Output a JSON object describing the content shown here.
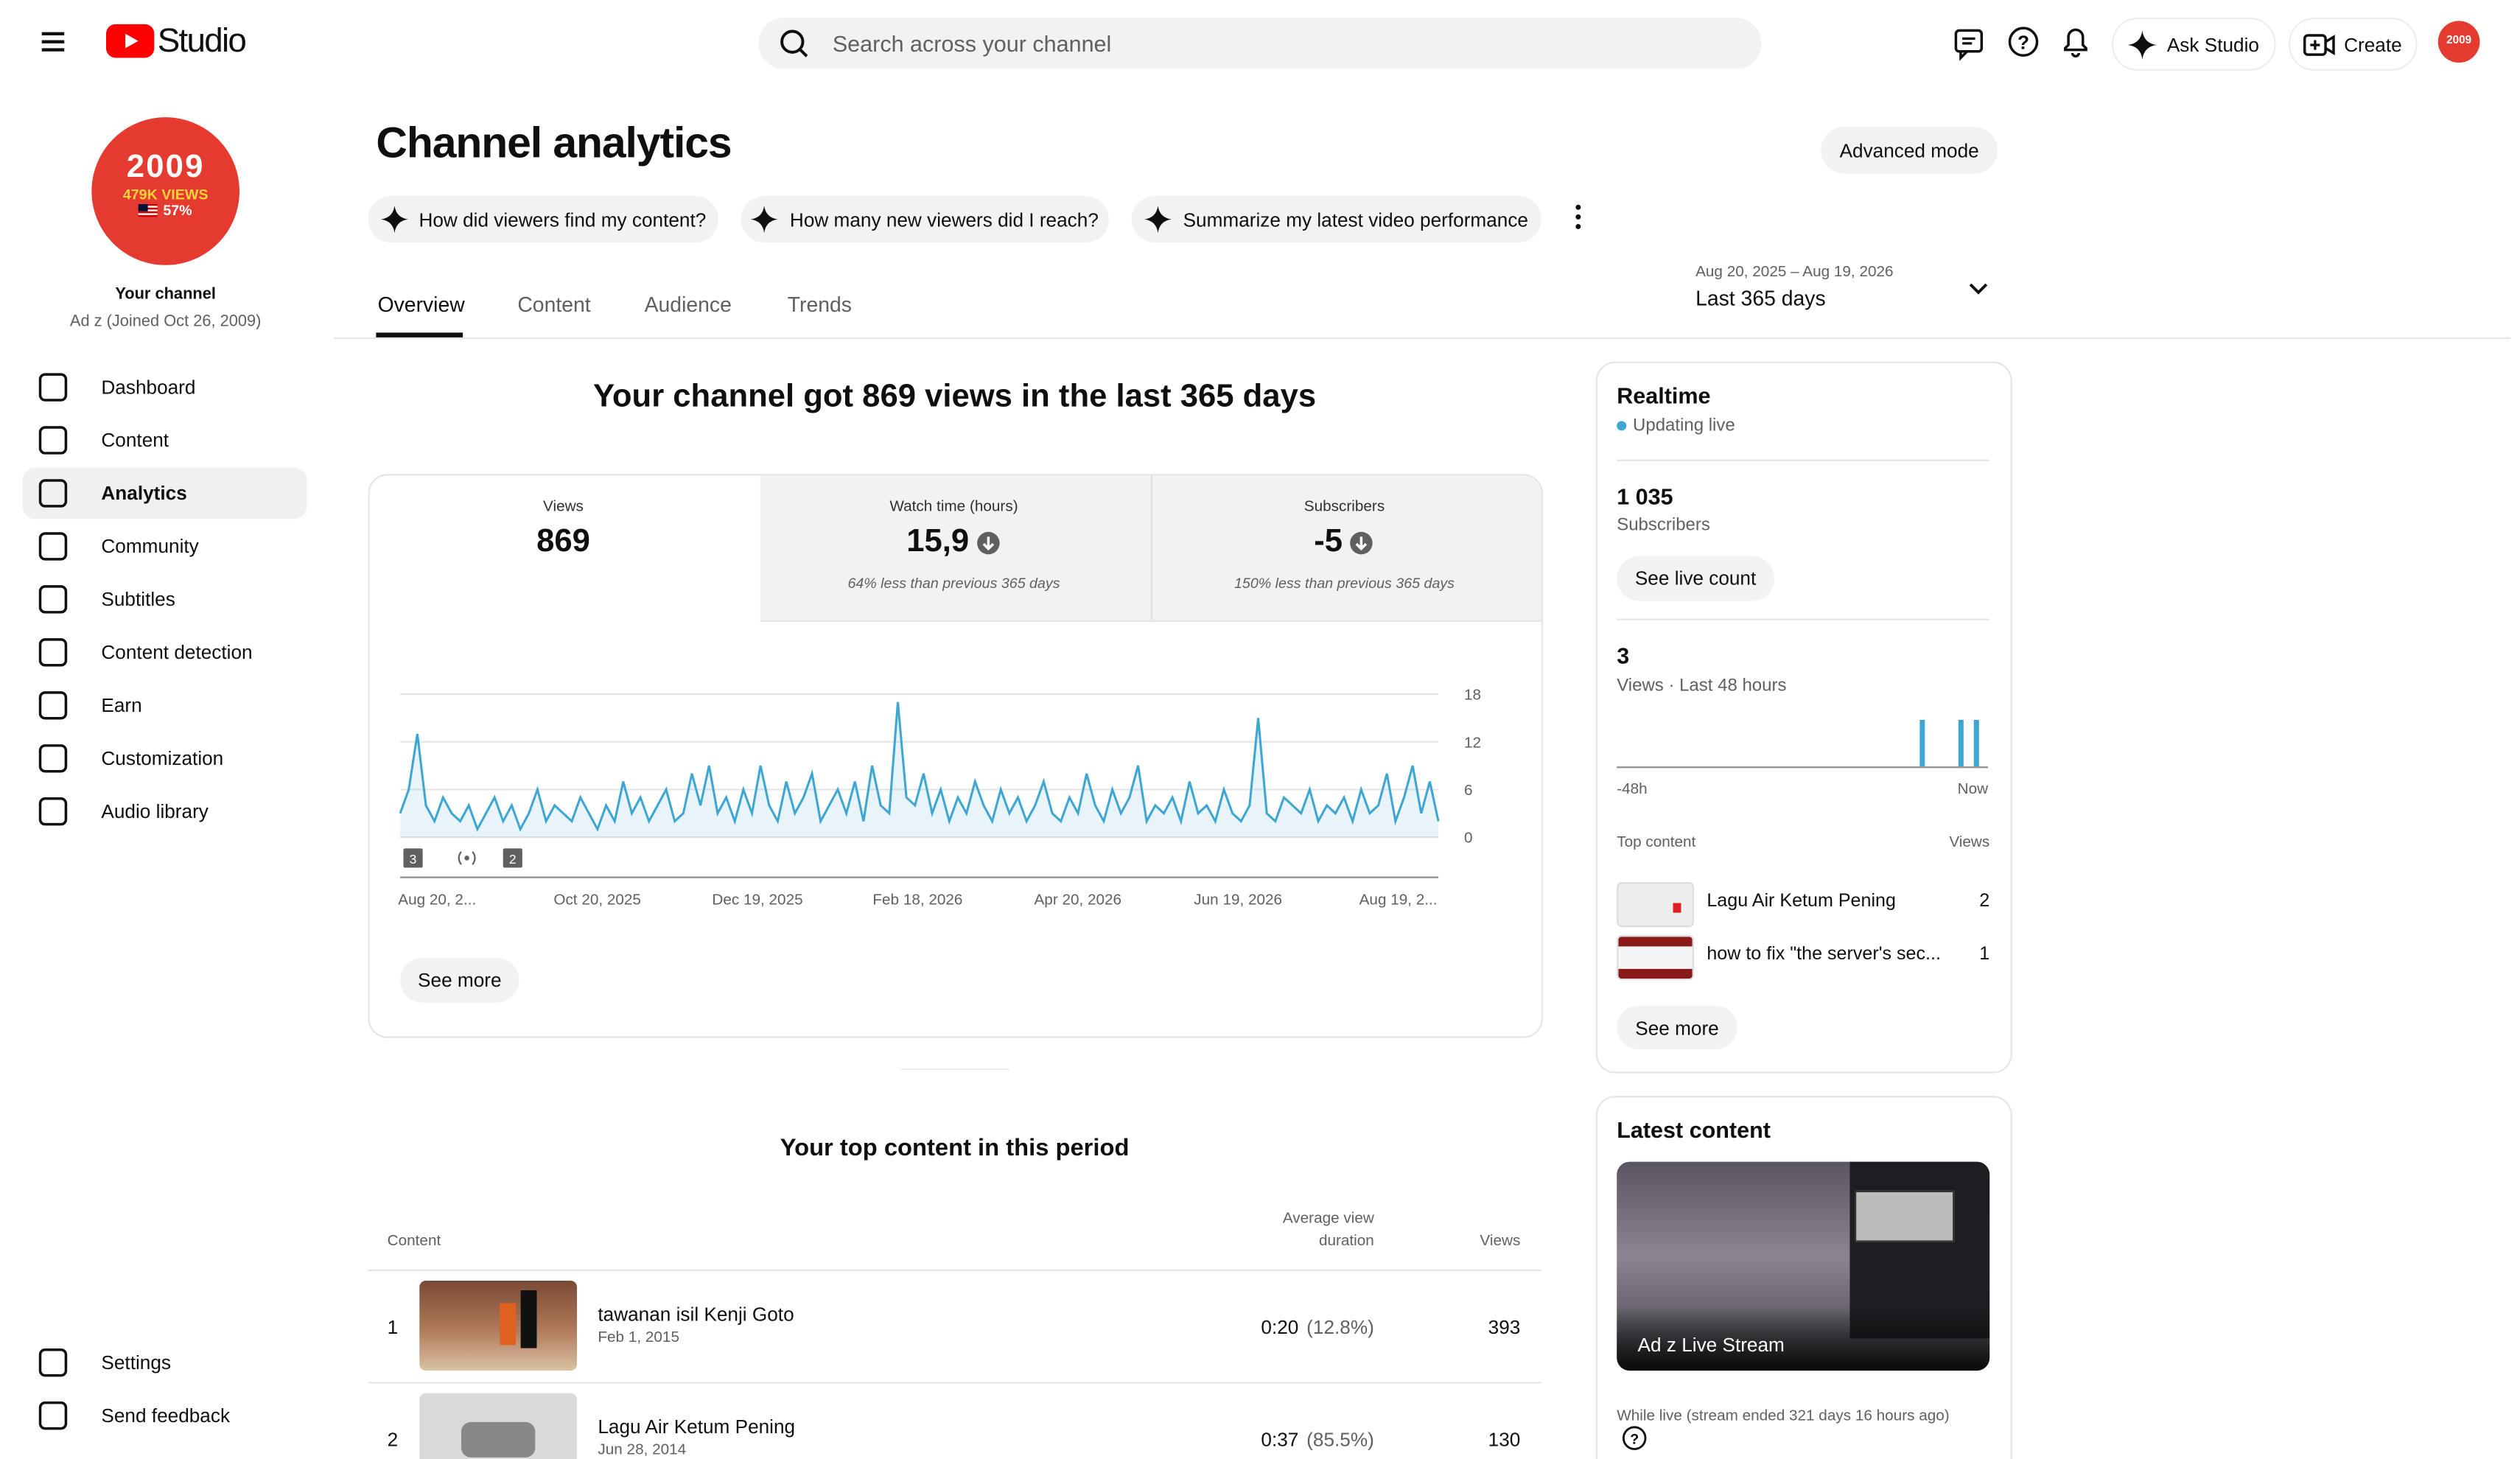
{
  "header": {
    "logo": "Studio",
    "search_placeholder": "Search across your channel",
    "ask_studio": "Ask Studio",
    "create": "Create",
    "avatar_text": "2009"
  },
  "sidebar": {
    "avatar": {
      "year": "2009",
      "views": "479K VIEWS",
      "share": "57%"
    },
    "channel_name": "Your channel",
    "channel_meta": "Ad z (Joined Oct 26, 2009)",
    "nav": [
      "Dashboard",
      "Content",
      "Analytics",
      "Community",
      "Subtitles",
      "Content detection",
      "Earn",
      "Customization",
      "Audio library"
    ],
    "footer_nav": [
      "Settings",
      "Send feedback"
    ]
  },
  "page": {
    "title": "Channel analytics",
    "advanced_mode": "Advanced mode",
    "prompts": [
      "How did viewers find my content?",
      "How many new viewers did I reach?",
      "Summarize my latest video performance"
    ],
    "tabs": [
      "Overview",
      "Content",
      "Audience",
      "Trends"
    ],
    "date_range": "Aug 20, 2025 – Aug 19, 2026",
    "period": "Last 365 days"
  },
  "overview": {
    "headline": "Your channel got 869 views in the last 365 days",
    "metrics": [
      {
        "label": "Views",
        "value": "869"
      },
      {
        "label": "Watch time (hours)",
        "value": "15,9",
        "note": "64% less than previous 365 days"
      },
      {
        "label": "Subscribers",
        "value": "-5",
        "note": "150% less than previous 365 days"
      }
    ],
    "see_more": "See more"
  },
  "views_chart": {
    "type": "line",
    "color": "#3ea6d3",
    "x_labels": [
      "Aug 20, 2...",
      "Oct 20, 2025",
      "Dec 19, 2025",
      "Feb 18, 2026",
      "Apr 20, 2026",
      "Jun 19, 2026",
      "Aug 19, 2..."
    ],
    "values": [
      3,
      6,
      13,
      4,
      2,
      5,
      3,
      2,
      4,
      1,
      3,
      5,
      2,
      4,
      1,
      3,
      6,
      2,
      4,
      3,
      2,
      5,
      3,
      1,
      4,
      2,
      7,
      3,
      5,
      2,
      4,
      6,
      2,
      3,
      8,
      4,
      9,
      3,
      5,
      2,
      6,
      3,
      9,
      4,
      2,
      7,
      3,
      5,
      8,
      2,
      4,
      6,
      3,
      7,
      2,
      9,
      4,
      3,
      17,
      5,
      4,
      8,
      3,
      6,
      2,
      5,
      3,
      7,
      4,
      2,
      6,
      3,
      5,
      2,
      4,
      7,
      3,
      2,
      5,
      3,
      8,
      4,
      2,
      6,
      3,
      5,
      9,
      2,
      4,
      3,
      5,
      2,
      7,
      3,
      4,
      2,
      6,
      3,
      2,
      4,
      15,
      3,
      2,
      5,
      4,
      3,
      6,
      2,
      4,
      3,
      5,
      2,
      6,
      3,
      4,
      8,
      2,
      5,
      9,
      3,
      7,
      2
    ],
    "ylim": [
      0,
      18
    ],
    "yticks": [
      0,
      6,
      12,
      18
    ],
    "grid": true,
    "annotations": [
      "3",
      "2"
    ]
  },
  "top_content": {
    "title": "Your top content in this period",
    "headers": [
      "Content",
      "Average view duration",
      "Views"
    ],
    "rows": [
      {
        "rank": "1",
        "title": "tawanan isil Kenji Goto",
        "date": "Feb 1, 2015",
        "avg": "0:20",
        "pct": "(12.8%)",
        "views": "393"
      },
      {
        "rank": "2",
        "title": "Lagu Air Ketum Pening",
        "date": "Jun 28, 2014",
        "avg": "0:37",
        "pct": "(85.5%)",
        "views": "130"
      }
    ]
  },
  "realtime": {
    "title": "Realtime",
    "status": "Updating live",
    "subscribers": "1 035",
    "subscribers_label": "Subscribers",
    "see_live_count": "See live count",
    "views": "3",
    "views_label": "Views · Last 48 hours",
    "chart": {
      "type": "bar",
      "color": "#3ea6d3",
      "values": [
        0,
        0,
        0,
        0,
        0,
        0,
        0,
        0,
        0,
        0,
        0,
        0,
        0,
        0,
        0,
        0,
        0,
        0,
        0,
        0,
        0,
        0,
        0,
        0,
        0,
        0,
        0,
        0,
        0,
        0,
        0,
        0,
        0,
        0,
        0,
        0,
        0,
        0,
        0,
        1,
        0,
        0,
        0,
        0,
        1,
        0,
        1,
        0
      ],
      "start_label": "-48h",
      "end_label": "Now"
    },
    "top_content_label": "Top content",
    "views_header": "Views",
    "items": [
      {
        "title": "Lagu Air Ketum Pening",
        "views": "2"
      },
      {
        "title": "how to fix \"the server's sec...",
        "views": "1"
      }
    ],
    "see_more": "See more"
  },
  "latest_content": {
    "title": "Latest content",
    "video_title": "Ad z Live Stream",
    "note": "While live (stream ended 321 days 16 hours ago)"
  }
}
